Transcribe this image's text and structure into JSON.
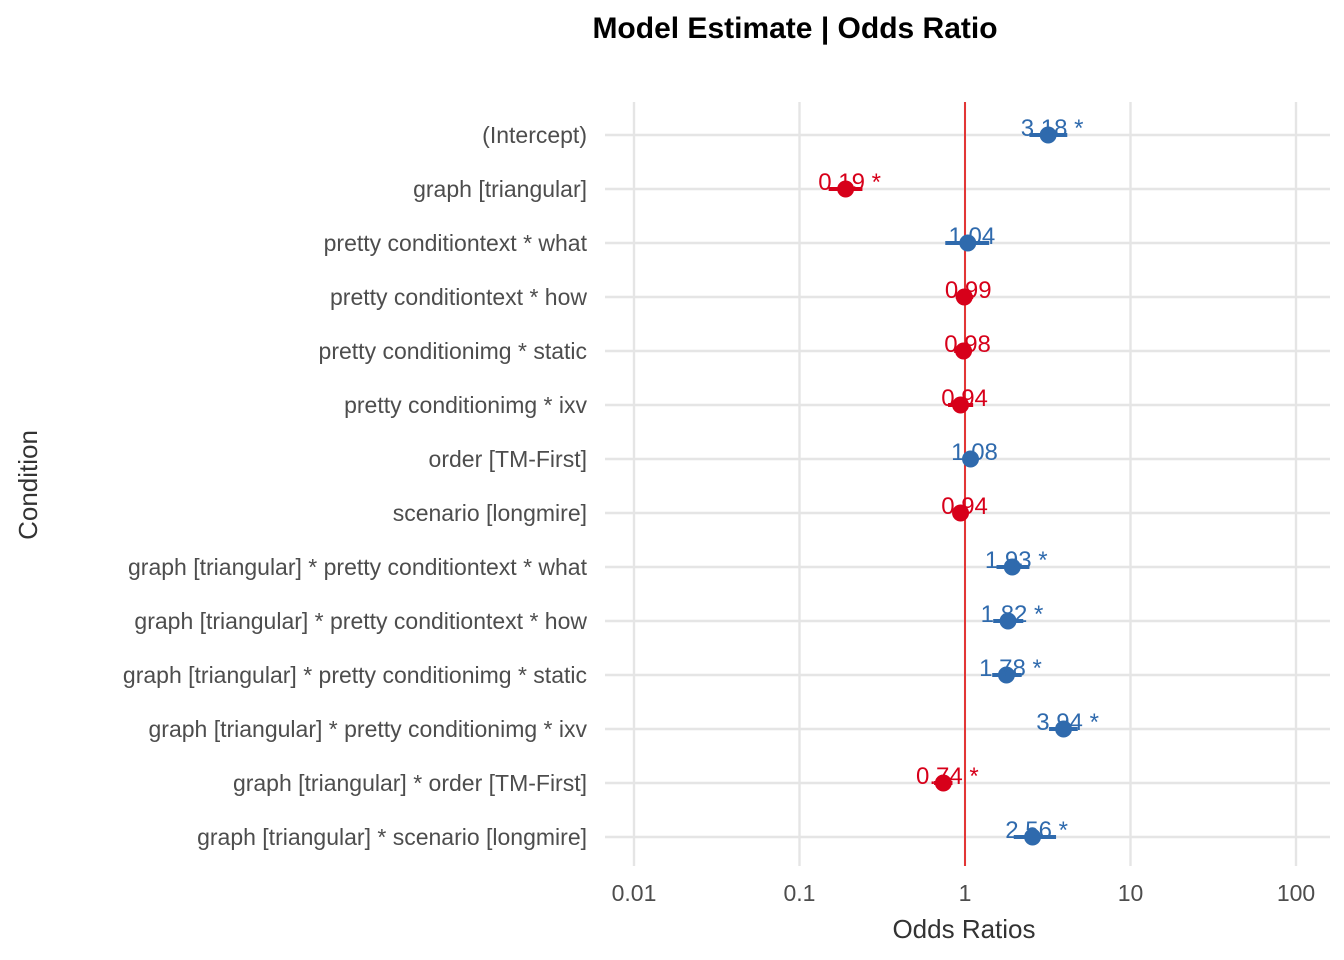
{
  "chart_data": {
    "type": "scatter",
    "title": "Model Estimate | Odds Ratio",
    "xlabel": "Odds Ratios",
    "ylabel": "Condition",
    "x_scale": "log",
    "xlim": [
      0.01,
      100
    ],
    "x_ticks": [
      "0.01",
      "0.1",
      "1",
      "10",
      "100"
    ],
    "reference_line": 1,
    "grid": true,
    "colors": {
      "positive": "#2f6aad",
      "negative": "#d7001a",
      "reference": "#e22222"
    },
    "categories": [
      "(Intercept)",
      "graph [triangular]",
      "pretty conditiontext * what",
      "pretty conditiontext * how",
      "pretty conditionimg * static",
      "pretty conditionimg * ixv",
      "order [TM-First]",
      "scenario [longmire]",
      "graph [triangular] * pretty conditiontext * what",
      "graph [triangular] * pretty conditiontext * how",
      "graph [triangular] * pretty conditionimg * static",
      "graph [triangular] * pretty conditionimg * ixv",
      "graph [triangular] * order [TM-First]",
      "graph [triangular] * scenario [longmire]"
    ],
    "estimates": [
      3.18,
      0.19,
      1.04,
      0.99,
      0.98,
      0.94,
      1.08,
      0.94,
      1.93,
      1.82,
      1.78,
      3.94,
      0.74,
      2.56
    ],
    "ci_low": [
      2.45,
      0.15,
      0.76,
      0.88,
      0.86,
      0.79,
      1.01,
      0.85,
      1.55,
      1.48,
      1.46,
      3.22,
      0.65,
      1.97
    ],
    "ci_high": [
      4.15,
      0.24,
      1.4,
      1.12,
      1.1,
      1.12,
      1.16,
      1.05,
      2.45,
      2.25,
      2.2,
      4.8,
      0.84,
      3.55
    ],
    "labels": [
      "3.18 *",
      "0.19 *",
      "1.04",
      "0.99",
      "0.98",
      "0.94",
      "1.08",
      "0.94",
      "1.93 *",
      "1.82 *",
      "1.78 *",
      "3.94 *",
      "0.74 *",
      "2.56 *"
    ]
  }
}
